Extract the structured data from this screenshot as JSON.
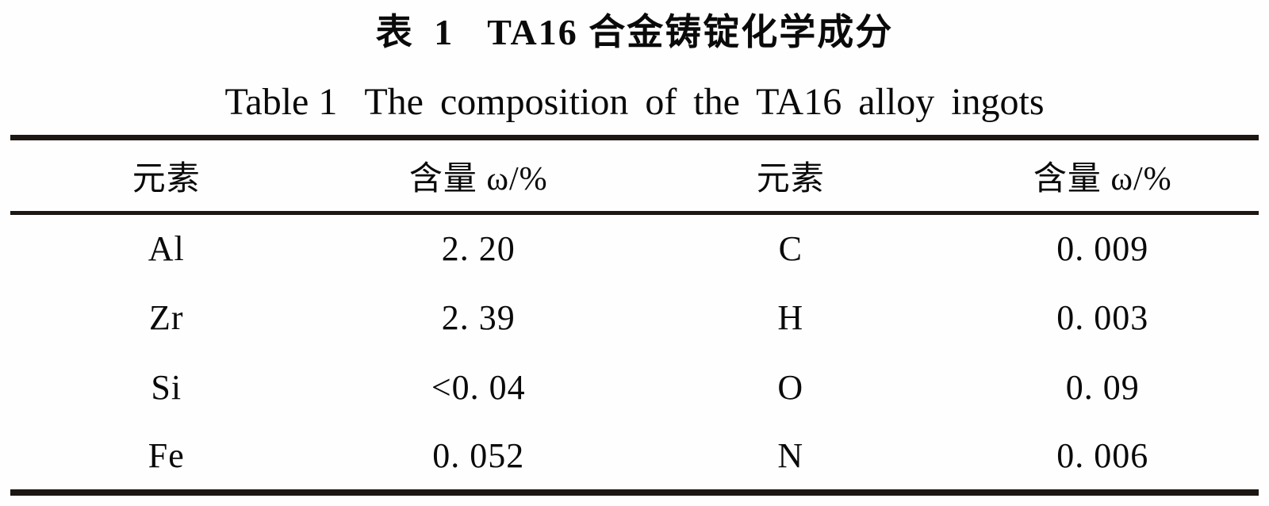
{
  "caption": {
    "label_cn": "表 1",
    "title_cn": "TA16 合金铸锭化学成分",
    "label_en": "Table 1",
    "title_en": "The composition of the TA16 alloy ingots"
  },
  "table": {
    "headers": [
      "元素",
      "含量 ω/%",
      "元素",
      "含量 ω/%"
    ],
    "rows": [
      [
        "Al",
        "2. 20",
        "C",
        "0. 009"
      ],
      [
        "Zr",
        "2. 39",
        "H",
        "0. 003"
      ],
      [
        "Si",
        "<0. 04",
        "O",
        "0. 09"
      ],
      [
        "Fe",
        "0. 052",
        "N",
        "0. 006"
      ]
    ]
  },
  "chart_data": {
    "type": "table",
    "title": "表 1 TA16 合金铸锭化学成分 / Table 1 The composition of the TA16 alloy ingots",
    "columns": [
      "元素",
      "含量 ω/%",
      "元素",
      "含量 ω/%"
    ],
    "elements": [
      "Al",
      "Zr",
      "Si",
      "Fe",
      "C",
      "H",
      "O",
      "N"
    ],
    "contents_percent": [
      "2.20",
      "2.39",
      "<0.04",
      "0.052",
      "0.009",
      "0.003",
      "0.09",
      "0.006"
    ]
  },
  "colors": {
    "text": "#0a0a0a",
    "rule": "#1d1713",
    "background": "#fefefe"
  }
}
